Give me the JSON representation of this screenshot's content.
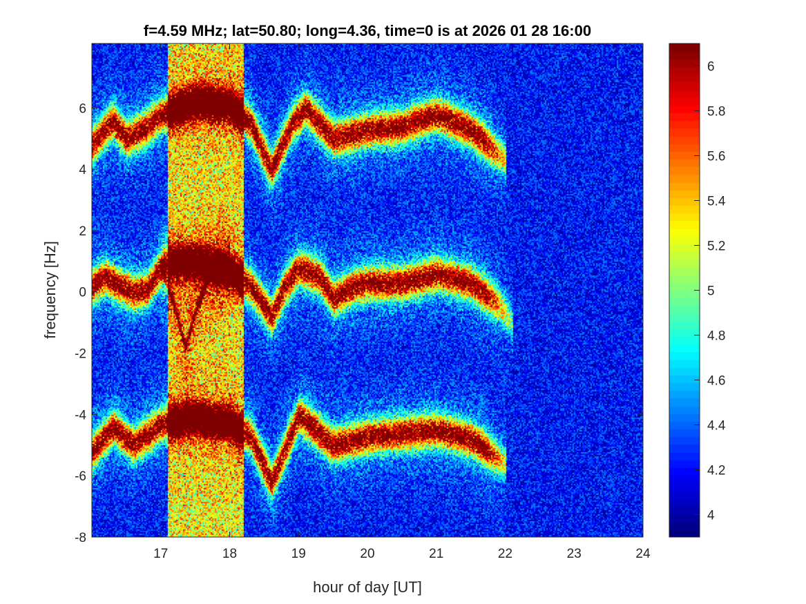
{
  "chart_data": {
    "type": "heatmap",
    "title": "f=4.59 MHz;  lat=50.80; long=4.36, time=0 is at 2026 01 28 16:00",
    "xlabel": "hour of day [UT]",
    "ylabel": "frequency [Hz]",
    "xlim": [
      16,
      24
    ],
    "ylim": [
      -8,
      8.1
    ],
    "xticks": [
      17,
      18,
      19,
      20,
      21,
      22,
      23,
      24
    ],
    "yticks": [
      -8,
      -6,
      -4,
      -2,
      0,
      2,
      4,
      6
    ],
    "colorbar": {
      "clim": [
        3.9,
        6.1
      ],
      "ticks": [
        "4",
        "4.2",
        "4.4",
        "4.6",
        "4.8",
        "5",
        "5.2",
        "5.4",
        "5.6",
        "5.8",
        "6"
      ],
      "colormap": "jet"
    },
    "background_level": 4.2,
    "noisy_band_hours": [
      17.1,
      18.2
    ],
    "ridges": [
      {
        "name": "upper",
        "x": [
          16.0,
          16.3,
          16.5,
          16.8,
          17.0,
          17.5,
          18.0,
          18.3,
          18.6,
          18.9,
          19.1,
          19.5,
          20.0,
          20.5,
          21.0,
          21.5,
          22.0
        ],
        "y": [
          4.8,
          5.6,
          5.0,
          5.4,
          5.8,
          6.2,
          6.1,
          5.5,
          4.0,
          5.5,
          6.0,
          5.0,
          5.3,
          5.4,
          5.8,
          5.3,
          4.3
        ]
      },
      {
        "name": "central",
        "x": [
          16.0,
          16.2,
          16.4,
          16.6,
          16.8,
          17.0,
          17.1,
          17.5,
          18.0,
          18.3,
          18.6,
          18.8,
          19.0,
          19.3,
          19.5,
          19.8,
          20.0,
          20.5,
          21.0,
          21.5,
          21.9,
          22.1
        ],
        "y": [
          0.2,
          0.5,
          0.2,
          0.0,
          0.1,
          0.8,
          1.0,
          1.0,
          0.7,
          0.2,
          -0.8,
          0.2,
          0.8,
          0.5,
          -0.2,
          0.2,
          0.3,
          0.3,
          0.6,
          0.3,
          -0.4,
          -1.0
        ]
      },
      {
        "name": "lower",
        "x": [
          16.0,
          16.3,
          16.6,
          17.0,
          17.5,
          18.0,
          18.3,
          18.6,
          19.0,
          19.5,
          20.0,
          20.5,
          21.0,
          21.5,
          22.0
        ],
        "y": [
          -5.2,
          -4.4,
          -5.0,
          -4.3,
          -4.1,
          -4.3,
          -4.7,
          -6.2,
          -4.0,
          -5.0,
          -4.7,
          -4.6,
          -4.5,
          -4.8,
          -5.6
        ]
      },
      {
        "name": "dip-trace",
        "x": [
          17.0,
          17.2,
          17.35,
          17.5,
          17.7,
          18.0
        ],
        "y": [
          0.8,
          -0.5,
          -1.8,
          -0.6,
          0.6,
          1.0
        ]
      }
    ]
  }
}
